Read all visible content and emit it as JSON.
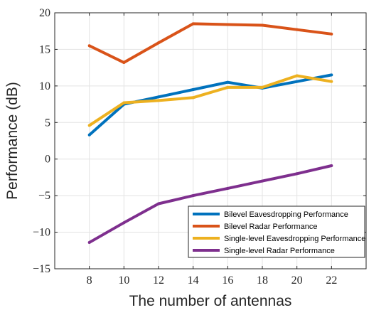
{
  "chart_data": {
    "type": "line",
    "title": "",
    "xlabel": "The number of antennas",
    "ylabel": "Performance (dB)",
    "xlim": [
      6,
      24
    ],
    "ylim": [
      -15,
      20
    ],
    "xticks": [
      8,
      10,
      12,
      14,
      16,
      18,
      20,
      22
    ],
    "yticks": [
      -15,
      -10,
      -5,
      0,
      5,
      10,
      15,
      20
    ],
    "grid": true,
    "legend_position": "bottom-right",
    "series": [
      {
        "name": "Bilevel Eavesdropping Performance",
        "color": "#0072BD",
        "x": [
          8,
          10,
          12,
          14,
          16,
          18,
          20,
          22
        ],
        "y": [
          3.3,
          7.5,
          8.5,
          9.5,
          10.5,
          9.7,
          10.6,
          11.5
        ]
      },
      {
        "name": "Bilevel Radar Performance",
        "color": "#D95319",
        "x": [
          8,
          10,
          12,
          14,
          16,
          18,
          20,
          22
        ],
        "y": [
          15.5,
          13.2,
          15.9,
          18.5,
          18.4,
          18.3,
          17.7,
          17.1
        ]
      },
      {
        "name": "Single-level Eavesdropping Performance",
        "color": "#EDB120",
        "x": [
          8,
          10,
          12,
          14,
          16,
          18,
          20,
          22
        ],
        "y": [
          4.6,
          7.7,
          8.0,
          8.4,
          9.8,
          9.8,
          11.4,
          10.6
        ]
      },
      {
        "name": "Single-level Radar Performance",
        "color": "#7E2F8E",
        "x": [
          8,
          10,
          12,
          14,
          16,
          18,
          20,
          22
        ],
        "y": [
          -11.4,
          -8.7,
          -6.1,
          -5.0,
          -4.0,
          -3.0,
          -2.0,
          -0.9
        ]
      }
    ]
  }
}
